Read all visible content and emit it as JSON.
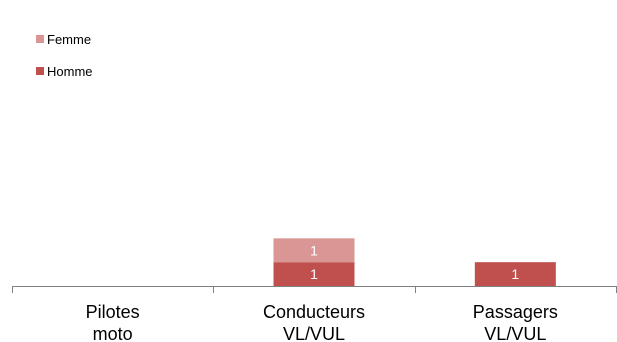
{
  "chart_data": {
    "type": "bar",
    "stacked": true,
    "categories": [
      "Pilotes moto",
      "Conducteurs VL/VUL",
      "Passagers VL/VUL"
    ],
    "category_lines": [
      [
        "Pilotes",
        "moto"
      ],
      [
        "Conducteurs",
        "VL/VUL"
      ],
      [
        "Passagers",
        "VL/VUL"
      ]
    ],
    "series": [
      {
        "name": "Homme",
        "color": "#c0504d",
        "values": [
          0,
          1,
          1
        ]
      },
      {
        "name": "Femme",
        "color": "#d99694",
        "values": [
          0,
          1,
          0
        ]
      }
    ],
    "legend_order": [
      "Femme",
      "Homme"
    ],
    "legend_placement": "top-left",
    "title": "",
    "xlabel": "",
    "ylabel": "",
    "ylim": [
      0,
      12
    ],
    "grid": false,
    "data_labels": true
  }
}
